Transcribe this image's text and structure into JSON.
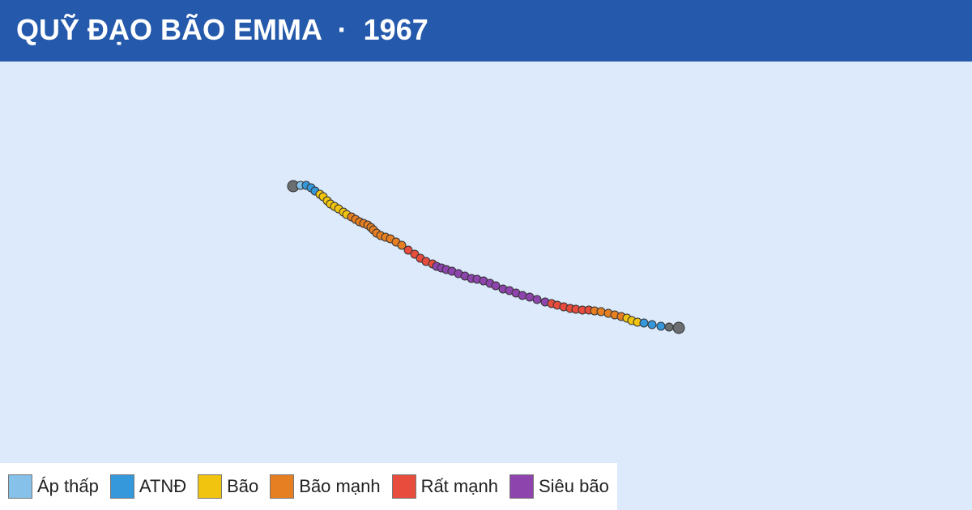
{
  "chart_data": {
    "type": "track",
    "title": "QUỸ ĐẠO BÃO EMMA  ·  1967",
    "xlim": [
      100,
      160
    ],
    "ylim": [
      5,
      32.7
    ],
    "endpoint_color": "#6b6e70",
    "legend": [
      {
        "name": "Áp thấp",
        "color": "#85c1e9"
      },
      {
        "name": "ATNĐ",
        "color": "#3498db"
      },
      {
        "name": "Bão",
        "color": "#f1c40f"
      },
      {
        "name": "Bão mạnh",
        "color": "#e67e22"
      },
      {
        "name": "Rất mạnh",
        "color": "#e74c3c"
      },
      {
        "name": "Siêu bão",
        "color": "#8e44ad"
      }
    ],
    "lon": [
      141.9,
      141.3,
      140.8,
      140.25,
      139.75,
      139.35,
      139.0,
      138.7,
      138.35,
      137.95,
      137.55,
      137.1,
      136.7,
      136.35,
      135.95,
      135.55,
      135.2,
      134.8,
      134.4,
      134.05,
      133.65,
      133.15,
      132.7,
      132.25,
      131.85,
      131.45,
      131.05,
      130.6,
      130.25,
      129.85,
      129.45,
      129.1,
      128.7,
      128.3,
      127.9,
      127.55,
      127.25,
      126.95,
      126.7,
      126.3,
      125.95,
      125.6,
      125.2,
      124.8,
      124.45,
      124.1,
      123.8,
      123.5,
      123.25,
      123.05,
      122.9,
      122.7,
      122.45,
      122.2,
      121.95,
      121.7,
      121.4,
      121.2,
      120.9,
      120.65,
      120.4,
      120.2,
      119.95,
      119.75,
      119.45,
      119.2,
      118.9,
      118.55,
      118.1
    ],
    "lat": [
      16.25,
      16.3,
      16.35,
      16.45,
      16.55,
      16.6,
      16.7,
      16.85,
      16.95,
      17.05,
      17.15,
      17.25,
      17.3,
      17.35,
      17.35,
      17.4,
      17.45,
      17.55,
      17.65,
      17.75,
      17.85,
      18.0,
      18.15,
      18.25,
      18.4,
      18.55,
      18.65,
      18.85,
      19.0,
      19.15,
      19.25,
      19.3,
      19.45,
      19.6,
      19.75,
      19.85,
      19.95,
      20.05,
      20.2,
      20.35,
      20.55,
      20.8,
      21.05,
      21.35,
      21.55,
      21.75,
      21.85,
      21.95,
      22.1,
      22.3,
      22.45,
      22.6,
      22.7,
      22.8,
      22.95,
      23.1,
      23.25,
      23.4,
      23.6,
      23.75,
      23.9,
      24.1,
      24.35,
      24.5,
      24.7,
      24.9,
      25.05,
      25.05,
      25.0
    ],
    "status": [
      null,
      null,
      "ATNĐ",
      "ATNĐ",
      "ATNĐ",
      "Bão",
      "Bão",
      "Bão",
      "Bão mạnh",
      "Bão mạnh",
      "Bão mạnh",
      "Bão mạnh",
      "Bão mạnh",
      "Rất mạnh",
      "Rất mạnh",
      "Rất mạnh",
      "Rất mạnh",
      "Rất mạnh",
      "Rất mạnh",
      "Rất mạnh",
      "Siêu bão",
      "Siêu bão",
      "Siêu bão",
      "Siêu bão",
      "Siêu bão",
      "Siêu bão",
      "Siêu bão",
      "Siêu bão",
      "Siêu bão",
      "Siêu bão",
      "Siêu bão",
      "Siêu bão",
      "Siêu bão",
      "Siêu bão",
      "Siêu bão",
      "Siêu bão",
      "Siêu bão",
      "Siêu bão",
      "Rất mạnh",
      "Rất mạnh",
      "Rất mạnh",
      "Rất mạnh",
      "Rất mạnh",
      "Bão mạnh",
      "Bão mạnh",
      "Bão mạnh",
      "Bão mạnh",
      "Bão mạnh",
      "Bão mạnh",
      "Bão mạnh",
      "Bão mạnh",
      "Bão mạnh",
      "Bão mạnh",
      "Bão mạnh",
      "Bão mạnh",
      "Bão mạnh",
      "Bão",
      "Bão",
      "Bão",
      "Bão",
      "Bão",
      "Bão",
      "Bão",
      "Bão",
      "ATNĐ",
      "ATNĐ",
      "ATNĐ",
      "Áp thấp",
      null
    ]
  }
}
